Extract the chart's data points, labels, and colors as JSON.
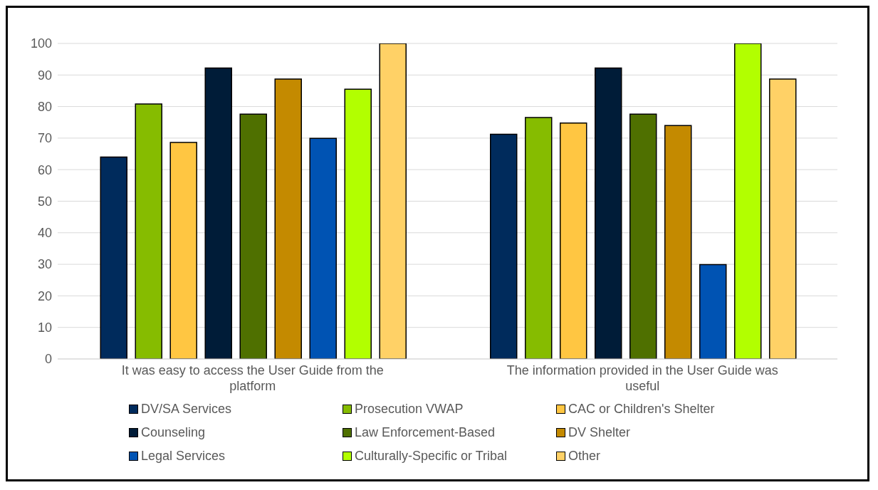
{
  "chart_data": {
    "type": "bar",
    "categories": [
      "It was easy to access the User Guide from the platform",
      "The information provided in the User Guide was useful"
    ],
    "series": [
      {
        "name": "DV/SA Services",
        "color": "#002b5c",
        "values": [
          64,
          71.2
        ]
      },
      {
        "name": "Prosecution VWAP",
        "color": "#86bc00",
        "values": [
          80.8,
          76.5
        ]
      },
      {
        "name": "CAC or Children's Shelter",
        "color": "#ffc642",
        "values": [
          68.6,
          74.8
        ]
      },
      {
        "name": "Counseling",
        "color": "#001c38",
        "values": [
          92.2,
          92.2
        ]
      },
      {
        "name": "Law Enforcement-Based",
        "color": "#4f7000",
        "values": [
          77.6,
          77.6
        ]
      },
      {
        "name": "DV Shelter",
        "color": "#c48a00",
        "values": [
          88.7,
          74
        ]
      },
      {
        "name": "Legal Services",
        "color": "#0053b3",
        "values": [
          69.9,
          29.9
        ]
      },
      {
        "name": "Culturally-Specific or Tribal",
        "color": "#b2ff00",
        "values": [
          85.5,
          100
        ]
      },
      {
        "name": "Other",
        "color": "#ffd166",
        "values": [
          100,
          88.7
        ]
      }
    ],
    "ylim": [
      0,
      100
    ],
    "yticks": [
      0,
      10,
      20,
      30,
      40,
      50,
      60,
      70,
      80,
      90,
      100
    ],
    "grid": "y",
    "legend": "bottom"
  }
}
